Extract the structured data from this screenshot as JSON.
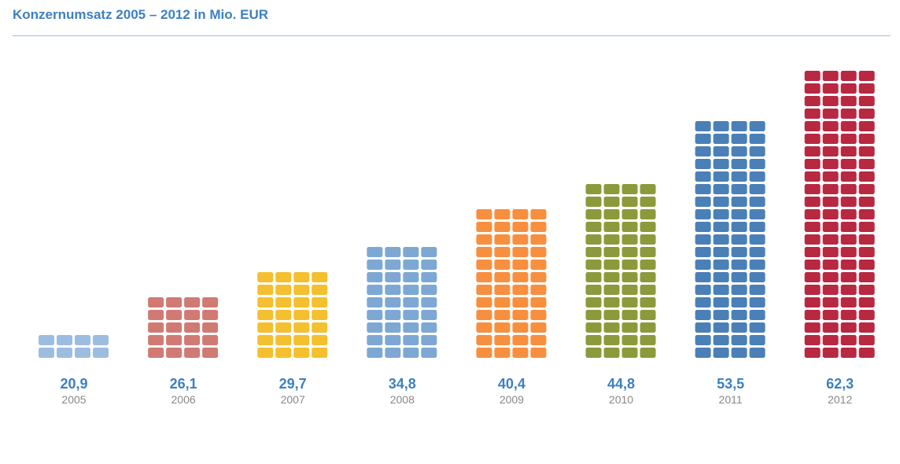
{
  "chart_data": {
    "type": "bar",
    "title": "Konzernumsatz 2005 – 2012 in Mio. EUR",
    "xlabel": "",
    "ylabel": "",
    "categories": [
      "2005",
      "2006",
      "2007",
      "2008",
      "2009",
      "2010",
      "2011",
      "2012"
    ],
    "values": [
      20.9,
      26.1,
      29.7,
      34.8,
      40.4,
      44.8,
      53.5,
      62.3
    ],
    "value_labels": [
      "20,9",
      "26,1",
      "29,7",
      "34,8",
      "40,4",
      "44,8",
      "53,5",
      "62,3"
    ],
    "block_rows": [
      2,
      5,
      7,
      9,
      12,
      14,
      19,
      23
    ],
    "colors": [
      "#9dbde0",
      "#d17a74",
      "#f4c02f",
      "#7ea8d4",
      "#f88f3f",
      "#8d9a3b",
      "#4a80b7",
      "#b82841"
    ],
    "grid": false,
    "legend": "none"
  }
}
